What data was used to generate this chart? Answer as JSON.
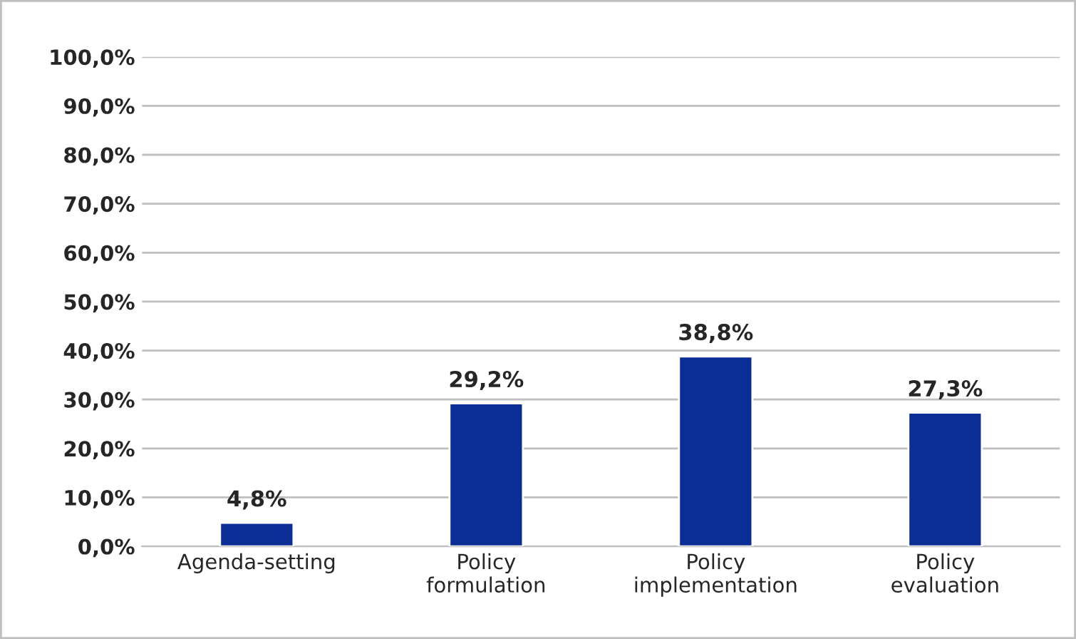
{
  "chart_data": {
    "type": "bar",
    "categories": [
      "Agenda-setting",
      "Policy\nformulation",
      "Policy\nimplementation",
      "Policy\nevaluation"
    ],
    "values": [
      4.8,
      29.2,
      38.8,
      27.3
    ],
    "value_labels": [
      "4,8%",
      "29,2%",
      "38,8%",
      "27,3%"
    ],
    "color": "#0a2d96",
    "ylim": [
      0,
      100
    ],
    "yticks": [
      {
        "value": 0,
        "label": "0,0%"
      },
      {
        "value": 10,
        "label": "10,0%"
      },
      {
        "value": 20,
        "label": "20,0%"
      },
      {
        "value": 30,
        "label": "30,0%"
      },
      {
        "value": 40,
        "label": "40,0%"
      },
      {
        "value": 50,
        "label": "50,0%"
      },
      {
        "value": 60,
        "label": "60,0%"
      },
      {
        "value": 70,
        "label": "70,0%"
      },
      {
        "value": 80,
        "label": "80,0%"
      },
      {
        "value": 90,
        "label": "90,0%"
      },
      {
        "value": 100,
        "label": "100,0%"
      }
    ],
    "grid": "y",
    "legend": false
  }
}
